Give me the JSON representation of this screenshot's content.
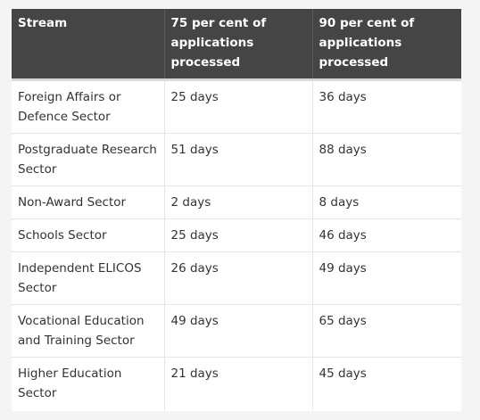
{
  "table": {
    "headers": [
      "Stream",
      "75 per cent of applications processed",
      "90 per cent of applications processed"
    ],
    "rows": [
      [
        "Foreign Affairs or Defence Sector",
        "25 days",
        "36 days"
      ],
      [
        "Postgraduate Research Sector",
        "51 days",
        "88 days"
      ],
      [
        "Non-Award Sector",
        "2 days",
        "8 days"
      ],
      [
        "Schools Sector",
        "25 days",
        "46 days"
      ],
      [
        "Independent ELICOS Sector",
        "26 days",
        "49 days"
      ],
      [
        "Vocational Education and Training Sector",
        "49 days",
        "65 days"
      ],
      [
        "Higher Education Sector",
        "21 days",
        "45 days"
      ]
    ]
  },
  "colors": {
    "header_background": "#454545",
    "header_text": "#ffffff",
    "body_text": "#333333",
    "page_background": "#f4f4f4"
  }
}
